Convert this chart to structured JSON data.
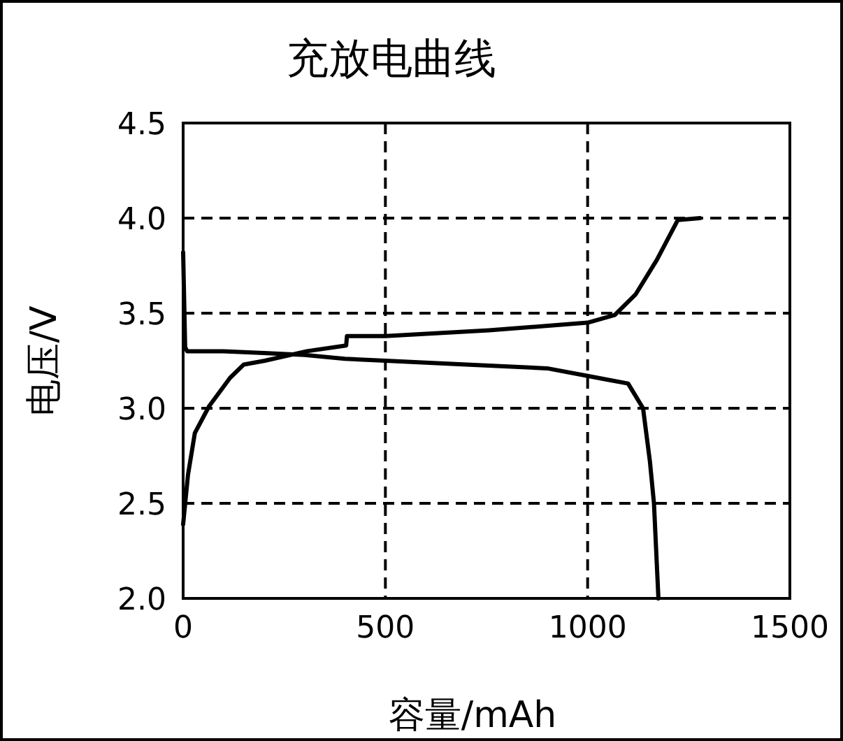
{
  "chart_data": {
    "type": "line",
    "title": "充放电曲线",
    "xlabel": "容量/mAh",
    "ylabel": "电压/V",
    "xlim": [
      0,
      1500
    ],
    "xticks": [
      0,
      500,
      1000,
      1500
    ],
    "ylim": [
      2.0,
      4.5
    ],
    "yticks": [
      {
        "value": 2.0,
        "label": "2.0"
      },
      {
        "value": 2.5,
        "label": "2.5"
      },
      {
        "value": 3.0,
        "label": "3.0"
      },
      {
        "value": 3.5,
        "label": "3.5"
      },
      {
        "value": 4.0,
        "label": "4.0"
      },
      {
        "value": 4.5,
        "label": "4.5"
      }
    ],
    "grid": true,
    "line_style": "solid",
    "series": [
      {
        "color": "#000000",
        "x": [
          0,
          5,
          10,
          100,
          200,
          300,
          400,
          500,
          700,
          900,
          1000,
          1050,
          1100,
          1137,
          1154,
          1164,
          1175
        ],
        "values": [
          3.82,
          3.32,
          3.3,
          3.3,
          3.29,
          3.28,
          3.26,
          3.25,
          3.23,
          3.21,
          3.17,
          3.15,
          3.13,
          3.0,
          2.72,
          2.5,
          2.0
        ]
      },
      {
        "color": "#000000",
        "x": [
          0,
          12,
          29,
          64,
          116,
          150,
          202,
          306,
          403,
          405,
          500,
          756,
          1000,
          1067,
          1119,
          1171,
          1223,
          1278
        ],
        "values": [
          2.39,
          2.65,
          2.87,
          3.01,
          3.16,
          3.23,
          3.25,
          3.3,
          3.33,
          3.38,
          3.38,
          3.41,
          3.45,
          3.49,
          3.6,
          3.78,
          3.99,
          4.0
        ]
      }
    ]
  }
}
